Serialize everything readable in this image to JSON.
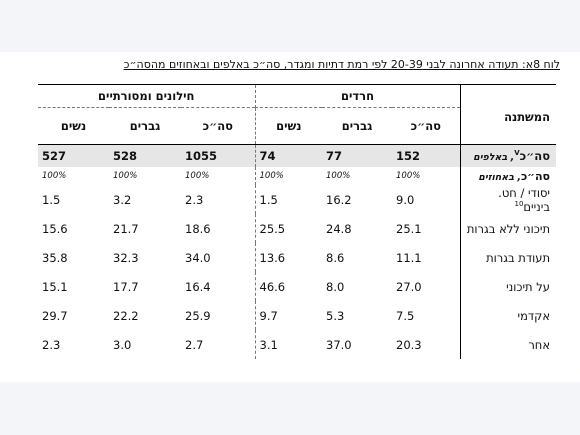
{
  "caption": {
    "label": "לוח 8א",
    "text": ": תעודה אחרונה לבני 20-39 לפי רמת דתיות ומגדר, סה״כ באלפים ובאחוזים מהסה״כ"
  },
  "header": {
    "variable": "המשתנה",
    "groups": [
      "חרדים",
      "חילונים ומסורתיים"
    ],
    "subcols": [
      "סה״כ",
      "גברים",
      "נשים"
    ]
  },
  "total_row": {
    "label_main": "סה״כ",
    "label_sup": "V",
    "label_suffix": ", באלפים",
    "values": [
      "152",
      "77",
      "74",
      "1055",
      "528",
      "527"
    ]
  },
  "percent_row": {
    "label_main": "סה״כ",
    "label_suffix": ", באחוזים",
    "values": [
      "100%",
      "100%",
      "100%",
      "100%",
      "100%",
      "100%"
    ]
  },
  "rows": [
    {
      "label": "יסודי / חט. ביניים",
      "sup": "10",
      "values": [
        "9.0",
        "16.2",
        "1.5",
        "2.3",
        "3.2",
        "1.5"
      ]
    },
    {
      "label": "תיכוני ללא בגרות",
      "sup": "",
      "values": [
        "25.1",
        "24.8",
        "25.5",
        "18.6",
        "21.7",
        "15.6"
      ]
    },
    {
      "label": "תעודת בגרות",
      "sup": "",
      "values": [
        "11.1",
        "8.6",
        "13.6",
        "34.0",
        "32.3",
        "35.8"
      ]
    },
    {
      "label": "על תיכוני",
      "sup": "",
      "values": [
        "27.0",
        "8.0",
        "46.6",
        "16.4",
        "17.7",
        "15.1"
      ]
    },
    {
      "label": "אקדמי",
      "sup": "",
      "values": [
        "7.5",
        "5.3",
        "9.7",
        "25.9",
        "22.2",
        "29.7"
      ]
    },
    {
      "label": "אחר",
      "sup": "",
      "values": [
        "20.3",
        "37.0",
        "3.1",
        "2.7",
        "3.0",
        "2.3"
      ]
    }
  ]
}
